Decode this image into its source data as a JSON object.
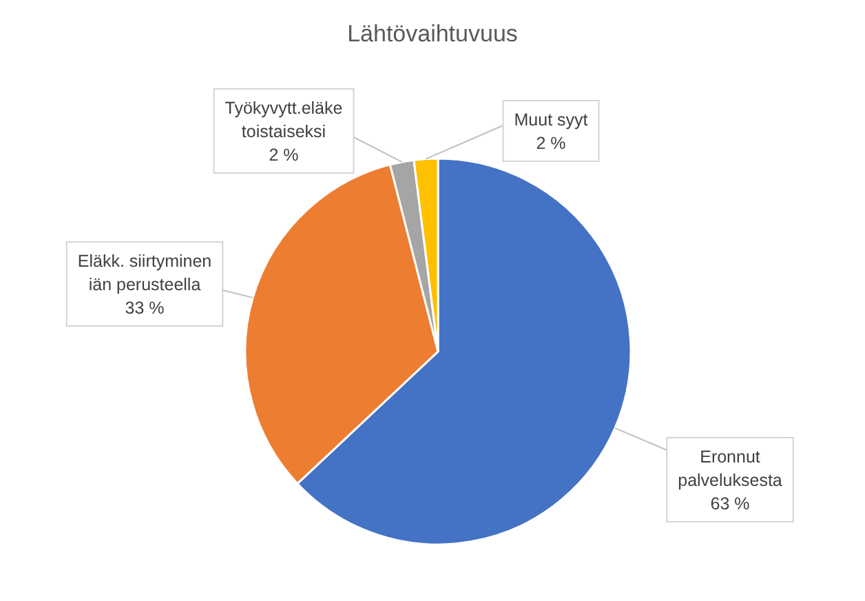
{
  "chart_data": {
    "type": "pie",
    "title": "Lähtövaihtuvuus",
    "categories": [
      "Eronnut palveluksesta",
      "Eläkk. siirtyminen iän perusteella",
      "Työkyvytt.eläke toistaiseksi",
      "Muut syyt"
    ],
    "values": [
      63,
      33,
      2,
      2
    ],
    "colors": [
      "#4472c4",
      "#ed7d31",
      "#a5a5a5",
      "#ffc000"
    ],
    "value_labels": [
      "63 %",
      "33 %",
      "2 %",
      "2 %"
    ]
  }
}
